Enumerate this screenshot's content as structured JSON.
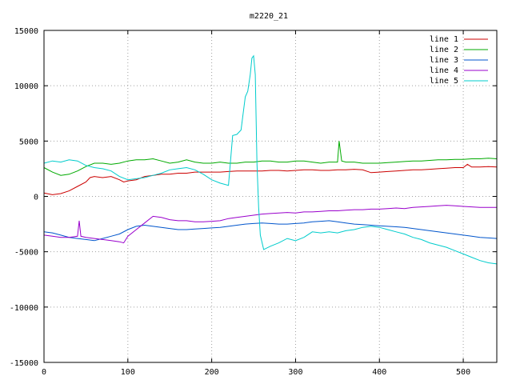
{
  "chart_data": {
    "type": "line",
    "title": "m2220_21",
    "xlabel": "",
    "ylabel": "",
    "xlim": [
      0,
      540
    ],
    "ylim": [
      -15000,
      15000
    ],
    "x_ticks": [
      0,
      100,
      200,
      300,
      400,
      500
    ],
    "y_ticks": [
      -15000,
      -10000,
      -5000,
      0,
      5000,
      10000,
      15000
    ],
    "grid": true,
    "legend_position": "top-right",
    "series": [
      {
        "name": "line 1",
        "color": "#cc0000",
        "points": [
          [
            0,
            300
          ],
          [
            10,
            150
          ],
          [
            20,
            250
          ],
          [
            30,
            500
          ],
          [
            40,
            900
          ],
          [
            50,
            1300
          ],
          [
            55,
            1700
          ],
          [
            60,
            1800
          ],
          [
            70,
            1700
          ],
          [
            80,
            1800
          ],
          [
            90,
            1500
          ],
          [
            95,
            1300
          ],
          [
            100,
            1400
          ],
          [
            110,
            1500
          ],
          [
            120,
            1800
          ],
          [
            130,
            1900
          ],
          [
            140,
            2000
          ],
          [
            150,
            2000
          ],
          [
            160,
            2100
          ],
          [
            170,
            2100
          ],
          [
            180,
            2200
          ],
          [
            190,
            2200
          ],
          [
            200,
            2200
          ],
          [
            210,
            2200
          ],
          [
            220,
            2250
          ],
          [
            230,
            2300
          ],
          [
            240,
            2300
          ],
          [
            250,
            2300
          ],
          [
            260,
            2300
          ],
          [
            270,
            2350
          ],
          [
            280,
            2350
          ],
          [
            290,
            2300
          ],
          [
            300,
            2350
          ],
          [
            310,
            2400
          ],
          [
            320,
            2400
          ],
          [
            330,
            2350
          ],
          [
            340,
            2350
          ],
          [
            350,
            2400
          ],
          [
            360,
            2400
          ],
          [
            370,
            2450
          ],
          [
            380,
            2400
          ],
          [
            390,
            2150
          ],
          [
            400,
            2200
          ],
          [
            410,
            2250
          ],
          [
            420,
            2300
          ],
          [
            430,
            2350
          ],
          [
            440,
            2400
          ],
          [
            450,
            2400
          ],
          [
            460,
            2450
          ],
          [
            470,
            2500
          ],
          [
            480,
            2550
          ],
          [
            490,
            2600
          ],
          [
            500,
            2600
          ],
          [
            505,
            2900
          ],
          [
            510,
            2650
          ],
          [
            520,
            2650
          ],
          [
            530,
            2700
          ],
          [
            540,
            2650
          ]
        ]
      },
      {
        "name": "line 2",
        "color": "#00aa00",
        "points": [
          [
            0,
            2600
          ],
          [
            10,
            2200
          ],
          [
            20,
            1900
          ],
          [
            30,
            2000
          ],
          [
            40,
            2300
          ],
          [
            50,
            2700
          ],
          [
            60,
            3000
          ],
          [
            70,
            3000
          ],
          [
            80,
            2900
          ],
          [
            90,
            3000
          ],
          [
            100,
            3200
          ],
          [
            110,
            3300
          ],
          [
            120,
            3300
          ],
          [
            130,
            3400
          ],
          [
            140,
            3200
          ],
          [
            150,
            3000
          ],
          [
            160,
            3100
          ],
          [
            170,
            3300
          ],
          [
            180,
            3100
          ],
          [
            190,
            3000
          ],
          [
            200,
            3000
          ],
          [
            210,
            3100
          ],
          [
            220,
            3000
          ],
          [
            230,
            3000
          ],
          [
            240,
            3100
          ],
          [
            250,
            3100
          ],
          [
            260,
            3200
          ],
          [
            270,
            3200
          ],
          [
            280,
            3100
          ],
          [
            290,
            3100
          ],
          [
            300,
            3200
          ],
          [
            310,
            3200
          ],
          [
            320,
            3100
          ],
          [
            330,
            3000
          ],
          [
            340,
            3100
          ],
          [
            350,
            3100
          ],
          [
            352,
            5000
          ],
          [
            355,
            3200
          ],
          [
            360,
            3100
          ],
          [
            370,
            3100
          ],
          [
            380,
            3000
          ],
          [
            390,
            3000
          ],
          [
            400,
            3000
          ],
          [
            410,
            3050
          ],
          [
            420,
            3100
          ],
          [
            430,
            3150
          ],
          [
            440,
            3200
          ],
          [
            450,
            3200
          ],
          [
            460,
            3250
          ],
          [
            470,
            3300
          ],
          [
            480,
            3300
          ],
          [
            490,
            3350
          ],
          [
            500,
            3350
          ],
          [
            510,
            3400
          ],
          [
            520,
            3400
          ],
          [
            530,
            3450
          ],
          [
            540,
            3400
          ]
        ]
      },
      {
        "name": "line 3",
        "color": "#0055cc",
        "points": [
          [
            0,
            -3200
          ],
          [
            10,
            -3300
          ],
          [
            20,
            -3500
          ],
          [
            30,
            -3700
          ],
          [
            40,
            -3800
          ],
          [
            50,
            -3900
          ],
          [
            60,
            -4000
          ],
          [
            70,
            -3800
          ],
          [
            80,
            -3600
          ],
          [
            90,
            -3400
          ],
          [
            100,
            -3000
          ],
          [
            110,
            -2700
          ],
          [
            120,
            -2600
          ],
          [
            130,
            -2700
          ],
          [
            140,
            -2800
          ],
          [
            150,
            -2900
          ],
          [
            160,
            -3000
          ],
          [
            170,
            -3000
          ],
          [
            180,
            -2950
          ],
          [
            190,
            -2900
          ],
          [
            200,
            -2850
          ],
          [
            210,
            -2800
          ],
          [
            220,
            -2700
          ],
          [
            230,
            -2600
          ],
          [
            240,
            -2500
          ],
          [
            250,
            -2450
          ],
          [
            260,
            -2400
          ],
          [
            270,
            -2450
          ],
          [
            280,
            -2500
          ],
          [
            290,
            -2500
          ],
          [
            300,
            -2450
          ],
          [
            310,
            -2400
          ],
          [
            320,
            -2300
          ],
          [
            330,
            -2250
          ],
          [
            340,
            -2200
          ],
          [
            350,
            -2300
          ],
          [
            360,
            -2400
          ],
          [
            370,
            -2500
          ],
          [
            380,
            -2550
          ],
          [
            390,
            -2600
          ],
          [
            400,
            -2650
          ],
          [
            410,
            -2700
          ],
          [
            420,
            -2750
          ],
          [
            430,
            -2800
          ],
          [
            440,
            -2900
          ],
          [
            450,
            -3000
          ],
          [
            460,
            -3100
          ],
          [
            470,
            -3200
          ],
          [
            480,
            -3300
          ],
          [
            490,
            -3400
          ],
          [
            500,
            -3500
          ],
          [
            510,
            -3600
          ],
          [
            520,
            -3700
          ],
          [
            530,
            -3750
          ],
          [
            540,
            -3800
          ]
        ]
      },
      {
        "name": "line 4",
        "color": "#9900cc",
        "points": [
          [
            0,
            -3500
          ],
          [
            10,
            -3600
          ],
          [
            20,
            -3700
          ],
          [
            30,
            -3700
          ],
          [
            40,
            -3600
          ],
          [
            42,
            -2200
          ],
          [
            44,
            -3600
          ],
          [
            50,
            -3700
          ],
          [
            60,
            -3800
          ],
          [
            70,
            -3900
          ],
          [
            80,
            -4000
          ],
          [
            90,
            -4100
          ],
          [
            95,
            -4200
          ],
          [
            100,
            -3600
          ],
          [
            110,
            -3000
          ],
          [
            120,
            -2400
          ],
          [
            130,
            -1800
          ],
          [
            140,
            -1900
          ],
          [
            150,
            -2100
          ],
          [
            160,
            -2200
          ],
          [
            170,
            -2200
          ],
          [
            180,
            -2300
          ],
          [
            190,
            -2300
          ],
          [
            200,
            -2250
          ],
          [
            210,
            -2200
          ],
          [
            220,
            -2000
          ],
          [
            230,
            -1900
          ],
          [
            240,
            -1800
          ],
          [
            250,
            -1700
          ],
          [
            260,
            -1600
          ],
          [
            270,
            -1550
          ],
          [
            280,
            -1500
          ],
          [
            290,
            -1450
          ],
          [
            300,
            -1500
          ],
          [
            310,
            -1400
          ],
          [
            320,
            -1400
          ],
          [
            330,
            -1350
          ],
          [
            340,
            -1300
          ],
          [
            350,
            -1300
          ],
          [
            360,
            -1250
          ],
          [
            370,
            -1200
          ],
          [
            380,
            -1200
          ],
          [
            390,
            -1150
          ],
          [
            400,
            -1150
          ],
          [
            410,
            -1100
          ],
          [
            420,
            -1050
          ],
          [
            430,
            -1100
          ],
          [
            440,
            -1000
          ],
          [
            450,
            -950
          ],
          [
            460,
            -900
          ],
          [
            470,
            -850
          ],
          [
            480,
            -800
          ],
          [
            490,
            -850
          ],
          [
            500,
            -900
          ],
          [
            510,
            -950
          ],
          [
            520,
            -1000
          ],
          [
            530,
            -1000
          ],
          [
            540,
            -1000
          ]
        ]
      },
      {
        "name": "line 5",
        "color": "#00cccc",
        "points": [
          [
            0,
            3000
          ],
          [
            10,
            3200
          ],
          [
            20,
            3100
          ],
          [
            30,
            3300
          ],
          [
            40,
            3200
          ],
          [
            50,
            2800
          ],
          [
            60,
            2600
          ],
          [
            70,
            2500
          ],
          [
            80,
            2300
          ],
          [
            90,
            1800
          ],
          [
            100,
            1500
          ],
          [
            110,
            1600
          ],
          [
            120,
            1700
          ],
          [
            130,
            1900
          ],
          [
            140,
            2100
          ],
          [
            150,
            2400
          ],
          [
            160,
            2500
          ],
          [
            170,
            2600
          ],
          [
            180,
            2400
          ],
          [
            190,
            2000
          ],
          [
            200,
            1500
          ],
          [
            210,
            1200
          ],
          [
            220,
            1000
          ],
          [
            225,
            5500
          ],
          [
            230,
            5600
          ],
          [
            235,
            6000
          ],
          [
            240,
            9000
          ],
          [
            243,
            9500
          ],
          [
            246,
            11000
          ],
          [
            248,
            12500
          ],
          [
            250,
            12700
          ],
          [
            252,
            11000
          ],
          [
            254,
            3000
          ],
          [
            256,
            -1000
          ],
          [
            258,
            -3500
          ],
          [
            262,
            -4800
          ],
          [
            270,
            -4500
          ],
          [
            280,
            -4200
          ],
          [
            290,
            -3800
          ],
          [
            300,
            -4000
          ],
          [
            310,
            -3700
          ],
          [
            320,
            -3200
          ],
          [
            330,
            -3300
          ],
          [
            340,
            -3200
          ],
          [
            350,
            -3300
          ],
          [
            360,
            -3100
          ],
          [
            370,
            -3000
          ],
          [
            380,
            -2800
          ],
          [
            390,
            -2700
          ],
          [
            400,
            -2800
          ],
          [
            410,
            -3000
          ],
          [
            420,
            -3200
          ],
          [
            430,
            -3400
          ],
          [
            440,
            -3700
          ],
          [
            450,
            -3900
          ],
          [
            460,
            -4200
          ],
          [
            470,
            -4400
          ],
          [
            480,
            -4600
          ],
          [
            490,
            -4900
          ],
          [
            500,
            -5200
          ],
          [
            510,
            -5500
          ],
          [
            520,
            -5800
          ],
          [
            530,
            -6000
          ],
          [
            540,
            -6100
          ]
        ]
      }
    ]
  }
}
